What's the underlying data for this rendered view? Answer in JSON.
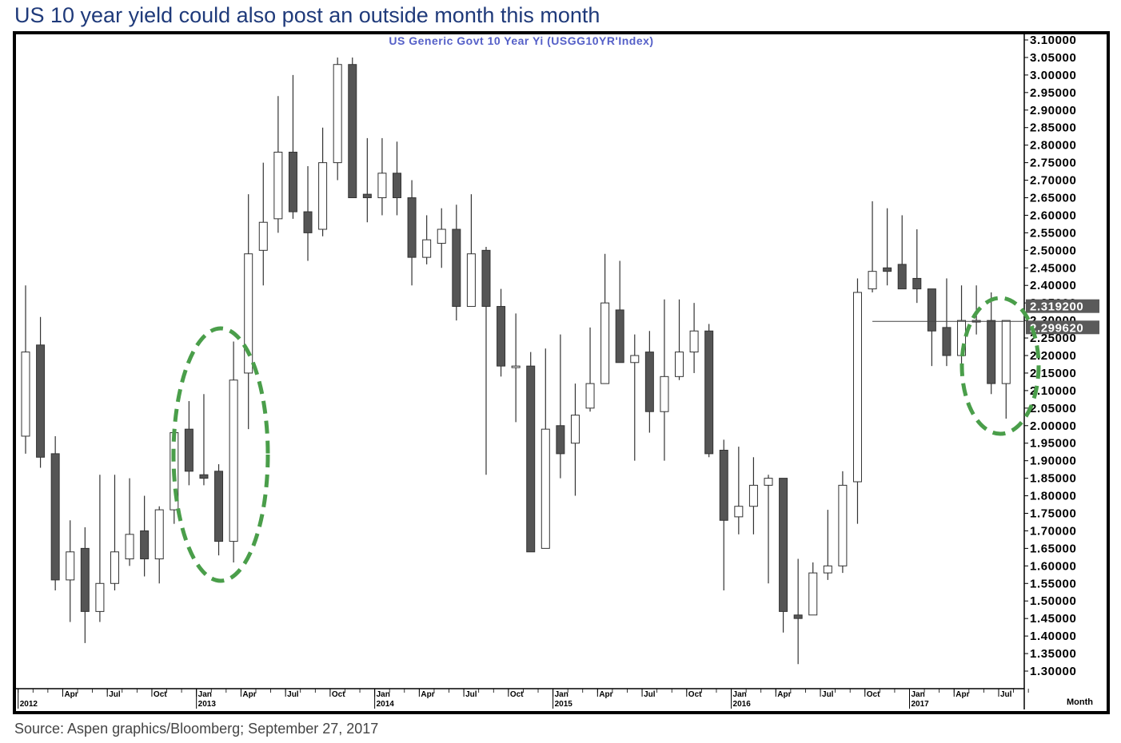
{
  "headline": "US 10 year yield could also post an outside month this month",
  "source": "Source: Aspen graphics/Bloomberg; September 27, 2017",
  "chart_data": {
    "type": "candlestick",
    "title": "US  Generic  Govt  10  Year  Yi  (USGG10YR'Index)",
    "period_label": "Month",
    "ylim": [
      1.3,
      3.1
    ],
    "y_ticks": [
      "3.10000",
      "3.05000",
      "3.00000",
      "2.95000",
      "2.90000",
      "2.85000",
      "2.80000",
      "2.75000",
      "2.70000",
      "2.65000",
      "2.60000",
      "2.55000",
      "2.50000",
      "2.45000",
      "2.40000",
      "2.35000",
      "2.30000",
      "2.25000",
      "2.20000",
      "2.15000",
      "2.10000",
      "2.05000",
      "2.00000",
      "1.95000",
      "1.90000",
      "1.85000",
      "1.80000",
      "1.75000",
      "1.70000",
      "1.65000",
      "1.60000",
      "1.55000",
      "1.50000",
      "1.45000",
      "1.40000",
      "1.35000",
      "1.30000"
    ],
    "price_labels": [
      "2.319200",
      "2.299620"
    ],
    "price_label_values": [
      2.3192,
      2.29962
    ],
    "x_tick_labels": [
      {
        "text": "Apr",
        "index": 3
      },
      {
        "text": "Jul",
        "index": 6
      },
      {
        "text": "Oct",
        "index": 9
      },
      {
        "text": "Jan",
        "index": 12
      },
      {
        "text": "Apr",
        "index": 15
      },
      {
        "text": "Jul",
        "index": 18
      },
      {
        "text": "Oct",
        "index": 21
      },
      {
        "text": "Jan",
        "index": 24
      },
      {
        "text": "Apr",
        "index": 27
      },
      {
        "text": "Jul",
        "index": 30
      },
      {
        "text": "Oct",
        "index": 33
      },
      {
        "text": "Jan",
        "index": 36
      },
      {
        "text": "Apr",
        "index": 39
      },
      {
        "text": "Jul",
        "index": 42
      },
      {
        "text": "Oct",
        "index": 45
      },
      {
        "text": "Jan",
        "index": 48
      },
      {
        "text": "Apr",
        "index": 51
      },
      {
        "text": "Jul",
        "index": 54
      },
      {
        "text": "Oct",
        "index": 57
      },
      {
        "text": "Jan",
        "index": 60
      },
      {
        "text": "Apr",
        "index": 63
      },
      {
        "text": "Jul",
        "index": 66
      }
    ],
    "year_labels": [
      {
        "text": "2012",
        "index": 0
      },
      {
        "text": "2013",
        "index": 12
      },
      {
        "text": "2014",
        "index": 24
      },
      {
        "text": "2015",
        "index": 36
      },
      {
        "text": "2016",
        "index": 48
      },
      {
        "text": "2017",
        "index": 60
      }
    ],
    "candles": [
      {
        "o": 1.97,
        "h": 2.4,
        "l": 1.92,
        "c": 2.21
      },
      {
        "o": 2.23,
        "h": 2.31,
        "l": 1.88,
        "c": 1.91
      },
      {
        "o": 1.92,
        "h": 1.97,
        "l": 1.53,
        "c": 1.56
      },
      {
        "o": 1.56,
        "h": 1.73,
        "l": 1.44,
        "c": 1.64
      },
      {
        "o": 1.65,
        "h": 1.71,
        "l": 1.38,
        "c": 1.47
      },
      {
        "o": 1.47,
        "h": 1.86,
        "l": 1.44,
        "c": 1.55
      },
      {
        "o": 1.55,
        "h": 1.86,
        "l": 1.53,
        "c": 1.64
      },
      {
        "o": 1.62,
        "h": 1.85,
        "l": 1.6,
        "c": 1.69
      },
      {
        "o": 1.7,
        "h": 1.8,
        "l": 1.57,
        "c": 1.62
      },
      {
        "o": 1.62,
        "h": 1.77,
        "l": 1.55,
        "c": 1.76
      },
      {
        "o": 1.76,
        "h": 1.99,
        "l": 1.72,
        "c": 1.98
      },
      {
        "o": 1.99,
        "h": 2.07,
        "l": 1.83,
        "c": 1.87
      },
      {
        "o": 1.86,
        "h": 2.09,
        "l": 1.83,
        "c": 1.85
      },
      {
        "o": 1.87,
        "h": 1.89,
        "l": 1.63,
        "c": 1.67
      },
      {
        "o": 1.67,
        "h": 2.24,
        "l": 1.61,
        "c": 2.13
      },
      {
        "o": 2.15,
        "h": 2.66,
        "l": 1.99,
        "c": 2.49
      },
      {
        "o": 2.5,
        "h": 2.75,
        "l": 2.4,
        "c": 2.58
      },
      {
        "o": 2.59,
        "h": 2.94,
        "l": 2.55,
        "c": 2.78
      },
      {
        "o": 2.78,
        "h": 3.0,
        "l": 2.59,
        "c": 2.61
      },
      {
        "o": 2.61,
        "h": 2.74,
        "l": 2.47,
        "c": 2.55
      },
      {
        "o": 2.56,
        "h": 2.85,
        "l": 2.54,
        "c": 2.75
      },
      {
        "o": 2.75,
        "h": 3.05,
        "l": 2.7,
        "c": 3.03
      },
      {
        "o": 3.03,
        "h": 3.05,
        "l": 2.65,
        "c": 2.65
      },
      {
        "o": 2.66,
        "h": 2.82,
        "l": 2.58,
        "c": 2.65
      },
      {
        "o": 2.65,
        "h": 2.82,
        "l": 2.6,
        "c": 2.72
      },
      {
        "o": 2.72,
        "h": 2.81,
        "l": 2.6,
        "c": 2.65
      },
      {
        "o": 2.65,
        "h": 2.7,
        "l": 2.4,
        "c": 2.48
      },
      {
        "o": 2.48,
        "h": 2.6,
        "l": 2.46,
        "c": 2.53
      },
      {
        "o": 2.52,
        "h": 2.62,
        "l": 2.45,
        "c": 2.56
      },
      {
        "o": 2.56,
        "h": 2.63,
        "l": 2.3,
        "c": 2.34
      },
      {
        "o": 2.34,
        "h": 2.66,
        "l": 2.34,
        "c": 2.49
      },
      {
        "o": 2.5,
        "h": 2.51,
        "l": 1.86,
        "c": 2.34
      },
      {
        "o": 2.34,
        "h": 2.39,
        "l": 2.14,
        "c": 2.17
      },
      {
        "o": 2.17,
        "h": 2.32,
        "l": 2.01,
        "c": 2.17
      },
      {
        "o": 2.17,
        "h": 2.21,
        "l": 1.64,
        "c": 1.64
      },
      {
        "o": 1.65,
        "h": 2.22,
        "l": 1.65,
        "c": 1.99
      },
      {
        "o": 2.0,
        "h": 2.26,
        "l": 1.85,
        "c": 1.92
      },
      {
        "o": 1.95,
        "h": 2.12,
        "l": 1.8,
        "c": 2.03
      },
      {
        "o": 2.05,
        "h": 2.28,
        "l": 2.04,
        "c": 2.12
      },
      {
        "o": 2.12,
        "h": 2.49,
        "l": 2.12,
        "c": 2.35
      },
      {
        "o": 2.33,
        "h": 2.47,
        "l": 2.18,
        "c": 2.18
      },
      {
        "o": 2.18,
        "h": 2.26,
        "l": 1.9,
        "c": 2.2
      },
      {
        "o": 2.21,
        "h": 2.27,
        "l": 1.98,
        "c": 2.04
      },
      {
        "o": 2.04,
        "h": 2.36,
        "l": 1.9,
        "c": 2.14
      },
      {
        "o": 2.14,
        "h": 2.36,
        "l": 2.13,
        "c": 2.21
      },
      {
        "o": 2.21,
        "h": 2.35,
        "l": 2.15,
        "c": 2.27
      },
      {
        "o": 2.27,
        "h": 2.29,
        "l": 1.91,
        "c": 1.92
      },
      {
        "o": 1.93,
        "h": 1.96,
        "l": 1.53,
        "c": 1.73
      },
      {
        "o": 1.74,
        "h": 1.94,
        "l": 1.69,
        "c": 1.77
      },
      {
        "o": 1.77,
        "h": 1.91,
        "l": 1.69,
        "c": 1.83
      },
      {
        "o": 1.83,
        "h": 1.86,
        "l": 1.55,
        "c": 1.85
      },
      {
        "o": 1.85,
        "h": 1.85,
        "l": 1.41,
        "c": 1.47
      },
      {
        "o": 1.46,
        "h": 1.62,
        "l": 1.32,
        "c": 1.45
      },
      {
        "o": 1.46,
        "h": 1.61,
        "l": 1.46,
        "c": 1.58
      },
      {
        "o": 1.58,
        "h": 1.76,
        "l": 1.56,
        "c": 1.6
      },
      {
        "o": 1.6,
        "h": 1.87,
        "l": 1.58,
        "c": 1.83
      },
      {
        "o": 1.84,
        "h": 2.42,
        "l": 1.72,
        "c": 2.38
      },
      {
        "o": 2.39,
        "h": 2.64,
        "l": 2.38,
        "c": 2.44
      },
      {
        "o": 2.45,
        "h": 2.62,
        "l": 2.4,
        "c": 2.44
      },
      {
        "o": 2.46,
        "h": 2.6,
        "l": 2.39,
        "c": 2.39
      },
      {
        "o": 2.42,
        "h": 2.56,
        "l": 2.35,
        "c": 2.39
      },
      {
        "o": 2.39,
        "h": 2.39,
        "l": 2.17,
        "c": 2.27
      },
      {
        "o": 2.28,
        "h": 2.42,
        "l": 2.17,
        "c": 2.2
      },
      {
        "o": 2.2,
        "h": 2.4,
        "l": 2.16,
        "c": 2.3
      },
      {
        "o": 2.3,
        "h": 2.4,
        "l": 2.26,
        "c": 2.3
      },
      {
        "o": 2.3,
        "h": 2.38,
        "l": 2.09,
        "c": 2.12
      },
      {
        "o": 2.12,
        "h": 2.3,
        "l": 2.02,
        "c": 2.3
      }
    ]
  }
}
